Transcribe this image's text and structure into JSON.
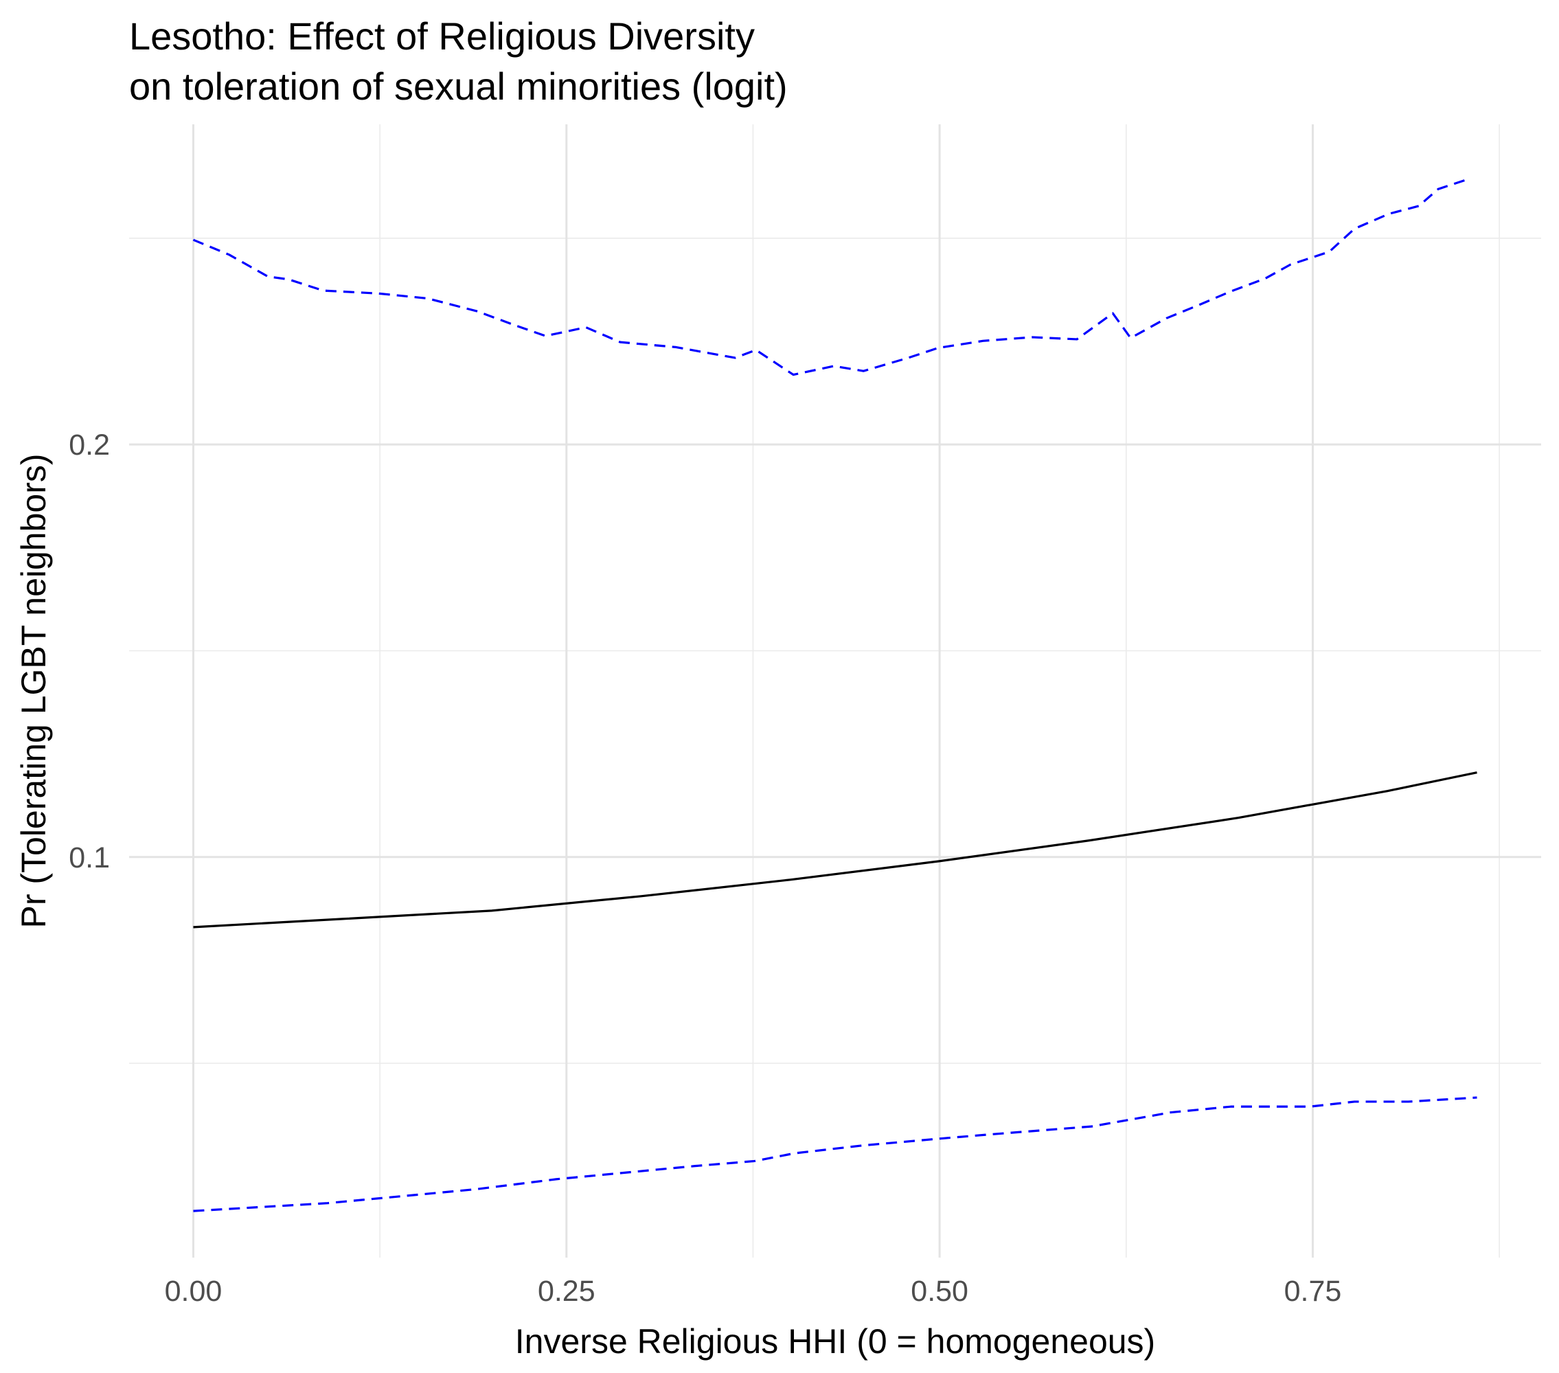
{
  "chart_data": {
    "type": "line",
    "title": "Lesotho: Effect of Religious Diversity",
    "subtitle": "on toleration of sexual minorities (logit)",
    "x_label": "Inverse Religious HHI (0 = homogeneous)",
    "y_label": "Pr (Tolerating LGBT neighbors)",
    "xlim": [
      -0.043,
      0.903
    ],
    "ylim": [
      0.0029,
      0.2776
    ],
    "xticks": [
      {
        "value": 0,
        "label": "0.00"
      },
      0.25,
      {
        "value": 0.5,
        "label": "0.50"
      },
      0.75
    ],
    "yticks": [
      0.1,
      0.2
    ],
    "x_minor_grid": [
      0.125,
      0.375,
      0.625,
      0.875
    ],
    "y_minor_grid": [
      0.05,
      0.15,
      0.25
    ],
    "grid": true,
    "series": [
      {
        "color": "#000000",
        "linestyle": "solid",
        "x": [
          0,
          0.1,
          0.2,
          0.3,
          0.4,
          0.5,
          0.6,
          0.7,
          0.8,
          0.86
        ],
        "values": [
          0.083,
          0.085,
          0.087,
          0.0905,
          0.0945,
          0.099,
          0.104,
          0.1095,
          0.116,
          0.1205
        ]
      },
      {
        "color": "#0000ff",
        "linestyle": "dashed",
        "x": [
          0,
          0.024,
          0.05,
          0.064,
          0.087,
          0.124,
          0.157,
          0.19,
          0.217,
          0.236,
          0.263,
          0.286,
          0.323,
          0.363,
          0.377,
          0.402,
          0.429,
          0.449,
          0.479,
          0.499,
          0.529,
          0.562,
          0.592,
          0.616,
          0.628,
          0.652,
          0.675,
          0.695,
          0.718,
          0.735,
          0.761,
          0.778,
          0.801,
          0.821,
          0.834,
          0.854
        ],
        "values": [
          0.2496,
          0.246,
          0.2407,
          0.24,
          0.2373,
          0.2366,
          0.2354,
          0.2323,
          0.2287,
          0.2263,
          0.2284,
          0.2248,
          0.2236,
          0.221,
          0.2229,
          0.2169,
          0.219,
          0.2178,
          0.221,
          0.2234,
          0.2251,
          0.226,
          0.2255,
          0.2318,
          0.2258,
          0.2306,
          0.234,
          0.2371,
          0.2402,
          0.2436,
          0.2467,
          0.2523,
          0.2559,
          0.2578,
          0.2619,
          0.2643
        ]
      },
      {
        "color": "#0000ff",
        "linestyle": "dashed",
        "x": [
          0,
          0.09,
          0.19,
          0.243,
          0.336,
          0.376,
          0.403,
          0.449,
          0.502,
          0.535,
          0.602,
          0.655,
          0.695,
          0.748,
          0.778,
          0.814,
          0.86
        ],
        "values": [
          0.0142,
          0.0161,
          0.0195,
          0.0219,
          0.0251,
          0.0263,
          0.0282,
          0.0301,
          0.0318,
          0.0328,
          0.0347,
          0.0381,
          0.0395,
          0.0395,
          0.0407,
          0.0407,
          0.0417
        ]
      }
    ]
  }
}
